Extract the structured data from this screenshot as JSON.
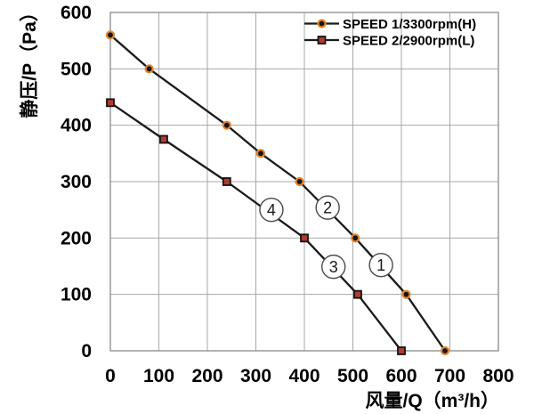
{
  "chart_data": {
    "type": "line",
    "title": "",
    "xlabel": "风量/Q（m³/h）",
    "ylabel": "静压/P（Pa）",
    "xlim": [
      0,
      800
    ],
    "ylim": [
      0,
      600
    ],
    "xticks": [
      0,
      100,
      200,
      300,
      400,
      500,
      600,
      700,
      800
    ],
    "yticks": [
      0,
      100,
      200,
      300,
      400,
      500,
      600
    ],
    "grid": true,
    "legend_position": "top-right-inside",
    "series": [
      {
        "name": "SPEED 1/3300rpm(H)",
        "marker": "circle",
        "line_color": "#1a1a1a",
        "marker_fill": "#141414",
        "marker_ring": "#e2832c",
        "points": [
          [
            0,
            560
          ],
          [
            80,
            500
          ],
          [
            240,
            400
          ],
          [
            310,
            350
          ],
          [
            390,
            300
          ],
          [
            505,
            200
          ],
          [
            610,
            100
          ],
          [
            690,
            0
          ]
        ]
      },
      {
        "name": "SPEED 2/2900rpm(L)",
        "marker": "square",
        "line_color": "#1a1a1a",
        "marker_fill": "#b23a30",
        "marker_ring": "#141414",
        "points": [
          [
            0,
            440
          ],
          [
            110,
            375
          ],
          [
            240,
            300
          ],
          [
            400,
            200
          ],
          [
            510,
            100
          ],
          [
            600,
            0
          ]
        ]
      }
    ],
    "annotations": [
      {
        "label": "1",
        "x": 558,
        "y": 152
      },
      {
        "label": "2",
        "x": 448,
        "y": 254
      },
      {
        "label": "3",
        "x": 460,
        "y": 149
      },
      {
        "label": "4",
        "x": 332,
        "y": 250
      }
    ]
  },
  "style": {
    "background": "#ffffff",
    "grid_color": "#a8a8a8",
    "border_color": "#8a8a8a",
    "text_color": "#000000",
    "annotation_ring": "#4a4a4a",
    "annotation_fill": "#ffffff"
  }
}
